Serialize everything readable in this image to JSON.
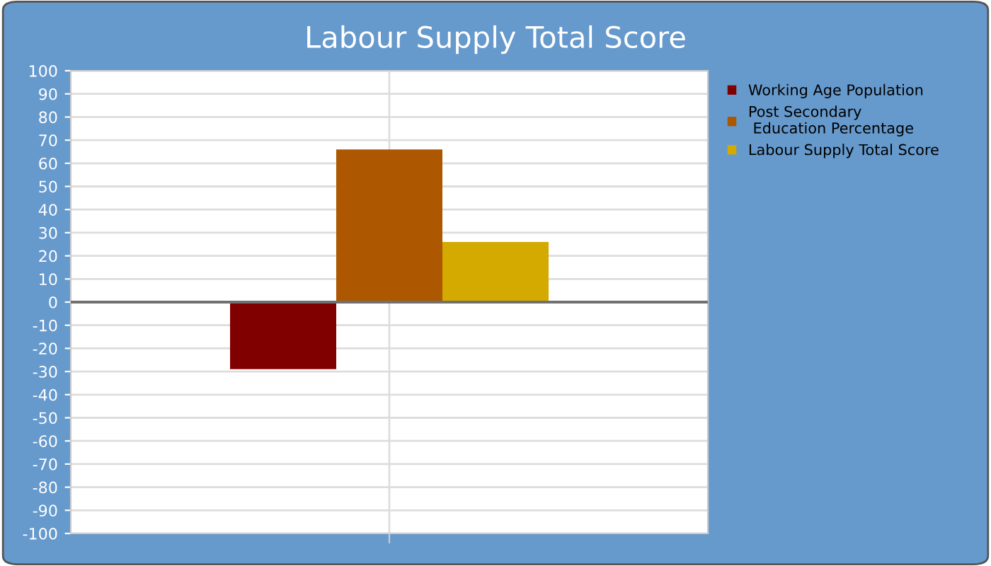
{
  "chart_data": {
    "type": "bar",
    "title": "Labour Supply Total Score",
    "categories": [
      null
    ],
    "series": [
      {
        "name": "Working Age Population",
        "color": "#800000",
        "values": [
          -29
        ]
      },
      {
        "name": "Post Secondary\n Education Percentage",
        "color": "#ad5700",
        "values": [
          66
        ]
      },
      {
        "name": "Labour Supply Total Score",
        "color": "#d4a900",
        "values": [
          26
        ]
      }
    ],
    "ylim": [
      -100,
      100
    ],
    "yticks": [
      -100,
      -90,
      -80,
      -70,
      -60,
      -50,
      -40,
      -30,
      -20,
      -10,
      0,
      10,
      20,
      30,
      40,
      50,
      60,
      70,
      80,
      90,
      100
    ],
    "ref_lines": [
      {
        "axis": "y",
        "value": 0,
        "color": "#707070"
      }
    ],
    "grid": true,
    "legend": "right"
  }
}
